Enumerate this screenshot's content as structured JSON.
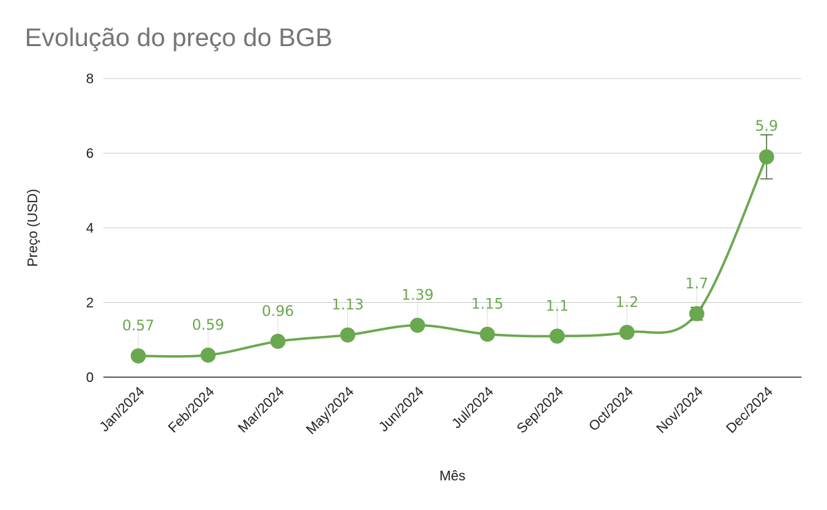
{
  "chart_data": {
    "type": "line",
    "title": "Evolução do preço do BGB",
    "xlabel": "Mês",
    "ylabel": "Preço (USD)",
    "categories": [
      "Jan/2024",
      "Feb/2024",
      "Mar/2024",
      "May/2024",
      "Jun/2024",
      "Jul/2024",
      "Sep/2024",
      "Oct/2024",
      "Nov/2024",
      "Dec/2024"
    ],
    "values": [
      0.57,
      0.59,
      0.96,
      1.13,
      1.39,
      1.15,
      1.1,
      1.2,
      1.7,
      5.9
    ],
    "data_labels": [
      "0.57",
      "0.59",
      "0.96",
      "1.13",
      "1.39",
      "1.15",
      "1.1",
      "1.2",
      "1.7",
      "5.9"
    ],
    "error_bars": [
      0.02,
      0.02,
      0.05,
      0.06,
      0.09,
      0.06,
      0.06,
      0.06,
      0.17,
      0.59
    ],
    "yticks": [
      0,
      2,
      4,
      6,
      8
    ],
    "ylim": [
      0,
      8
    ],
    "grid": true,
    "smooth": true,
    "color": "#6aa84f",
    "label_color": "#6aa84f"
  }
}
